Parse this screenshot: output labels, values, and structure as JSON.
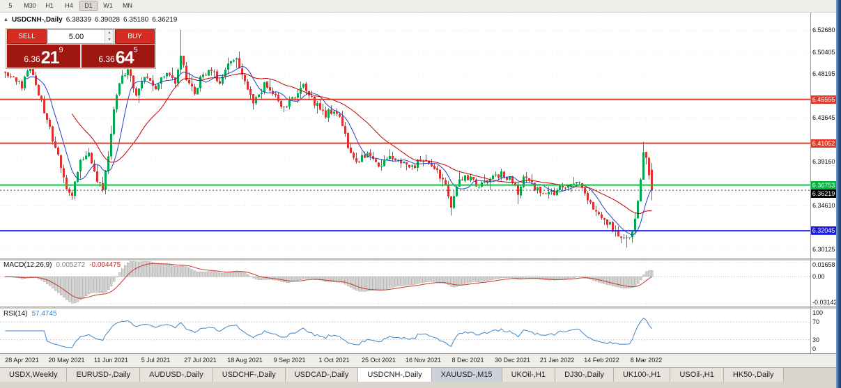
{
  "accent_colors": {
    "up_candle": "#00a94f",
    "down_candle": "#e03131",
    "ma_fast": "#2243c8",
    "ma_slow": "#c00000",
    "macd_hist": "#d2d2d2",
    "macd_hist_border": "#9a9a9a",
    "macd_signal": "#c0392b",
    "rsi_line": "#3d85c8",
    "window_border": "#2d5590"
  },
  "toolbar": {
    "timeframes": [
      "5",
      "M30",
      "H1",
      "H4",
      "D1",
      "W1",
      "MN"
    ],
    "active": "D1"
  },
  "chart": {
    "info": {
      "symbol": "USDCNH-,Daily",
      "open": "6.38339",
      "high": "6.39028",
      "low": "6.35180",
      "close": "6.36219"
    },
    "trade_panel": {
      "sell_label": "SELL",
      "buy_label": "BUY",
      "volume": "5.00",
      "sell_price": {
        "prefix": "6.36",
        "big": "21",
        "sup": "9"
      },
      "buy_price": {
        "prefix": "6.36",
        "big": "64",
        "sup": "5"
      }
    },
    "current_price": 6.36219,
    "price_axis": [
      {
        "text": "6.52680",
        "value": 6.5268,
        "type": "plain"
      },
      {
        "text": "6.50405",
        "value": 6.50405,
        "type": "plain"
      },
      {
        "text": "6.48195",
        "value": 6.48195,
        "type": "plain"
      },
      {
        "text": "6.45555",
        "value": 6.45555,
        "type": "badge",
        "bg": "#e23b2e"
      },
      {
        "text": "6.43645",
        "value": 6.43645,
        "type": "plain"
      },
      {
        "text": "6.41052",
        "value": 6.41052,
        "type": "badge",
        "bg": "#e23b2e"
      },
      {
        "text": "6.39160",
        "value": 6.3916,
        "type": "plain"
      },
      {
        "text": "6.36753",
        "value": 6.36753,
        "type": "badge",
        "bg": "#00b43c"
      },
      {
        "text": "6.36219",
        "value": 6.36219,
        "type": "badge",
        "bg": "#000000"
      },
      {
        "text": "6.34610",
        "value": 6.3461,
        "type": "plain"
      },
      {
        "text": "6.32045",
        "value": 6.32045,
        "type": "badge",
        "bg": "#1c1cd8"
      },
      {
        "text": "6.30125",
        "value": 6.30125,
        "type": "plain"
      }
    ]
  },
  "chart_data": {
    "type": "candlestick",
    "symbol": "USDCNH-,Daily",
    "num_candles": 233,
    "price_range": {
      "top": 6.545,
      "bottom": 6.292
    },
    "close_keypoints": [
      [
        0,
        6.485
      ],
      [
        6,
        6.47
      ],
      [
        9,
        6.492
      ],
      [
        13,
        6.452
      ],
      [
        17,
        6.415
      ],
      [
        20,
        6.388
      ],
      [
        22,
        6.364
      ],
      [
        24,
        6.358
      ],
      [
        27,
        6.392
      ],
      [
        30,
        6.404
      ],
      [
        33,
        6.372
      ],
      [
        35,
        6.362
      ],
      [
        37,
        6.4
      ],
      [
        39,
        6.447
      ],
      [
        41,
        6.474
      ],
      [
        44,
        6.486
      ],
      [
        47,
        6.458
      ],
      [
        50,
        6.478
      ],
      [
        54,
        6.468
      ],
      [
        58,
        6.484
      ],
      [
        61,
        6.47
      ],
      [
        63,
        6.502
      ],
      [
        65,
        6.476
      ],
      [
        68,
        6.462
      ],
      [
        70,
        6.48
      ],
      [
        74,
        6.488
      ],
      [
        77,
        6.47
      ],
      [
        80,
        6.492
      ],
      [
        83,
        6.498
      ],
      [
        86,
        6.476
      ],
      [
        89,
        6.452
      ],
      [
        93,
        6.47
      ],
      [
        97,
        6.458
      ],
      [
        100,
        6.446
      ],
      [
        103,
        6.458
      ],
      [
        107,
        6.47
      ],
      [
        111,
        6.452
      ],
      [
        115,
        6.44
      ],
      [
        118,
        6.446
      ],
      [
        121,
        6.43
      ],
      [
        123,
        6.405
      ],
      [
        126,
        6.392
      ],
      [
        130,
        6.4
      ],
      [
        134,
        6.388
      ],
      [
        138,
        6.398
      ],
      [
        142,
        6.39
      ],
      [
        146,
        6.386
      ],
      [
        150,
        6.396
      ],
      [
        154,
        6.384
      ],
      [
        158,
        6.368
      ],
      [
        160,
        6.346
      ],
      [
        162,
        6.368
      ],
      [
        166,
        6.376
      ],
      [
        170,
        6.366
      ],
      [
        174,
        6.372
      ],
      [
        178,
        6.38
      ],
      [
        182,
        6.372
      ],
      [
        184,
        6.36
      ],
      [
        186,
        6.378
      ],
      [
        190,
        6.364
      ],
      [
        194,
        6.356
      ],
      [
        198,
        6.362
      ],
      [
        202,
        6.368
      ],
      [
        205,
        6.374
      ],
      [
        208,
        6.356
      ],
      [
        211,
        6.344
      ],
      [
        214,
        6.334
      ],
      [
        217,
        6.326
      ],
      [
        220,
        6.316
      ],
      [
        223,
        6.31
      ],
      [
        225,
        6.32
      ],
      [
        227,
        6.348
      ],
      [
        228,
        6.376
      ],
      [
        229,
        6.404
      ],
      [
        230,
        6.396
      ],
      [
        231,
        6.376
      ],
      [
        232,
        6.362
      ]
    ],
    "spikes": [
      {
        "index": 9,
        "high": 6.499
      },
      {
        "index": 63,
        "high": 6.527
      },
      {
        "index": 160,
        "low": 6.336
      },
      {
        "index": 184,
        "low": 6.348
      },
      {
        "index": 223,
        "low": 6.303
      },
      {
        "index": 229,
        "high": 6.412
      }
    ],
    "overrides": [
      {
        "index": 232,
        "o": 6.38339,
        "h": 6.39028,
        "l": 6.3518,
        "c": 6.36219
      }
    ],
    "ma_periods": {
      "fast": 8,
      "slow": 25
    },
    "h_lines": [
      {
        "price": 6.45555,
        "color": "#e23b2e",
        "width": 2
      },
      {
        "price": 6.41052,
        "color": "#e23b2e",
        "width": 2
      },
      {
        "price": 6.36753,
        "color": "#00c83c",
        "width": 2
      },
      {
        "price": 6.32045,
        "color": "#1c1cd8",
        "width": 2
      }
    ],
    "x_axis": {
      "first_tick_index": 6,
      "tick_step": 16,
      "tick_labels": [
        "28 Apr 2021",
        "20 May 2021",
        "11 Jun 2021",
        "5 Jul 2021",
        "27 Jul 2021",
        "18 Aug 2021",
        "9 Sep 2021",
        "1 Oct 2021",
        "25 Oct 2021",
        "16 Nov 2021",
        "8 Dec 2021",
        "30 Dec 2021",
        "21 Jan 2022",
        "14 Feb 2022",
        "8 Mar 2022"
      ]
    }
  },
  "indicators": {
    "macd": {
      "name": "MACD(12,26,9)",
      "value_main": "0.005272",
      "value_signal": "-0.004475",
      "range_top": 0.0185,
      "range_bottom": -0.0345,
      "axis": [
        {
          "text": "0.01658",
          "value": 0.01658
        },
        {
          "text": "0.00",
          "value": 0
        },
        {
          "text": "-0.03142",
          "value": -0.03142
        }
      ]
    },
    "rsi": {
      "name": "RSI(14)",
      "value": "57.4745",
      "levels": [
        70,
        30
      ],
      "axis": [
        {
          "text": "100",
          "value": 100
        },
        {
          "text": "70",
          "value": 70
        },
        {
          "text": "30",
          "value": 30
        },
        {
          "text": "0",
          "value": 0
        }
      ]
    }
  },
  "tabs": {
    "items": [
      {
        "label": "USDX,Weekly"
      },
      {
        "label": "EURUSD-,Daily"
      },
      {
        "label": "AUDUSD-,Daily"
      },
      {
        "label": "USDCHF-,Daily"
      },
      {
        "label": "USDCAD-,Daily"
      },
      {
        "label": "USDCNH-,Daily",
        "active": true
      },
      {
        "label": "XAUUSD-,M15",
        "shaded": true
      },
      {
        "label": "UKOil-,H1"
      },
      {
        "label": "DJ30-,Daily"
      },
      {
        "label": "UK100-,H1"
      },
      {
        "label": "USOil-,H1"
      },
      {
        "label": "HK50-,Daily"
      }
    ]
  }
}
